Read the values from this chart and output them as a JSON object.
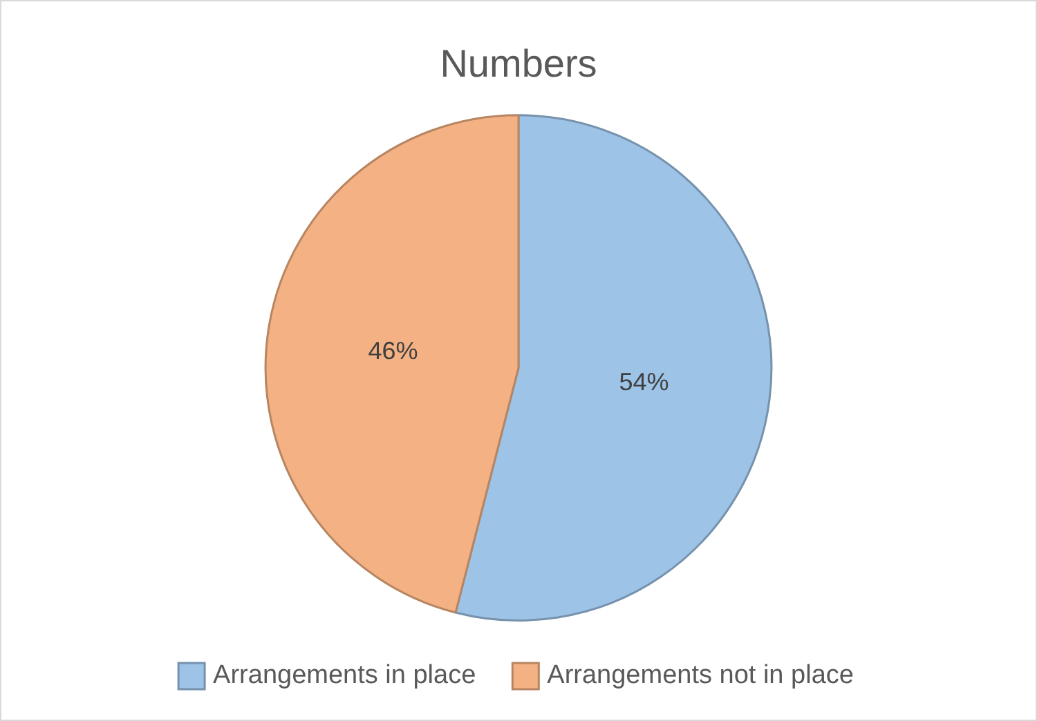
{
  "chart_data": {
    "type": "pie",
    "title": "Numbers",
    "categories": [
      "Arrangements in place",
      "Arrangements not in place"
    ],
    "values": [
      54,
      46
    ],
    "colors": [
      "#9dc3e6",
      "#f4b183"
    ],
    "value_labels": [
      "54%",
      "46%"
    ],
    "legend": "bottom"
  }
}
